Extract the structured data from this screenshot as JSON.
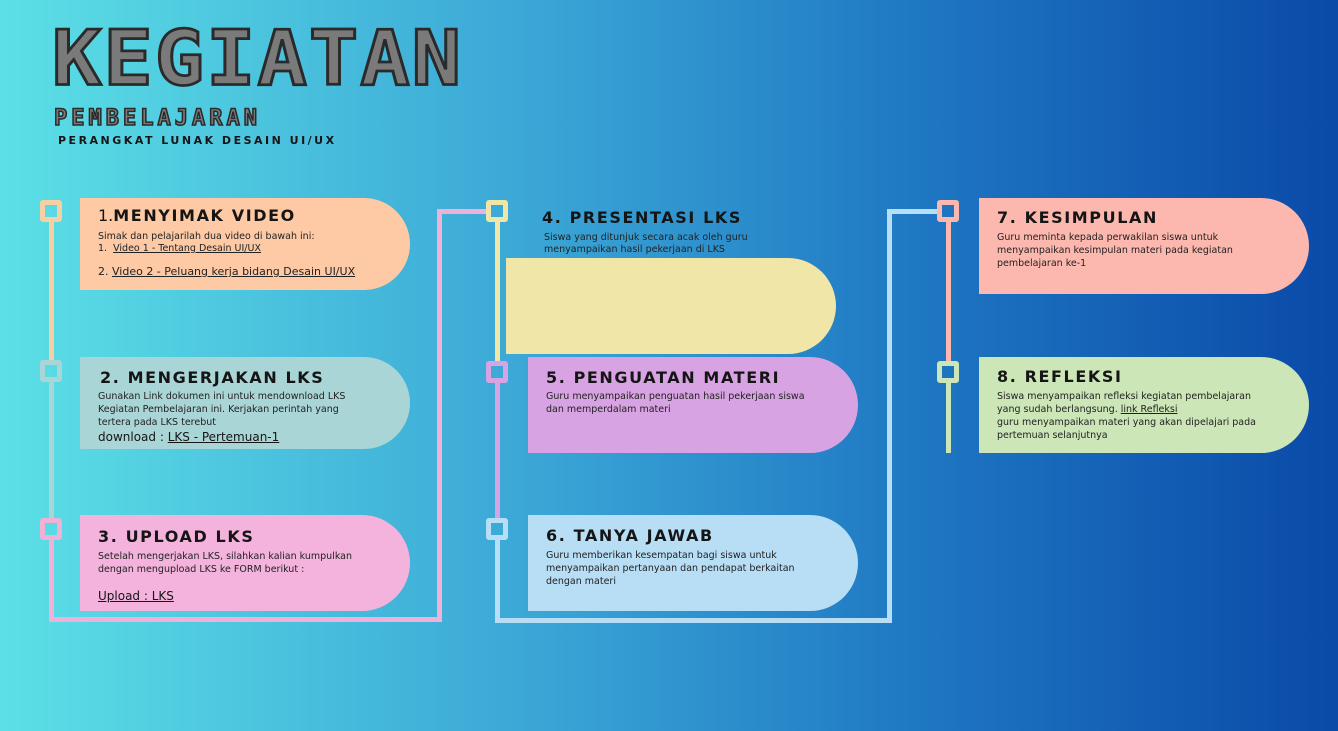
{
  "header": {
    "title": "KEGIATAN",
    "subtitle": "PEMBELAJARAN",
    "course": "PERANGKAT LUNAK DESAIN UI/UX"
  },
  "steps": [
    {
      "title": "MENYIMAK VIDEO",
      "number": "1.",
      "intro": "Simak dan pelajarilah dua video di bawah ini:",
      "item1_num": "1.",
      "item1": "Video 1 - Tentang Desain UI/UX",
      "item2_num": "2.",
      "item2": "Video 2 - Peluang kerja bidang Desain UI/UX"
    },
    {
      "title": "2. MENGERJAKAN LKS",
      "line1": "Gunakan Link dokumen ini untuk mendownload LKS",
      "line2": "Kegiatan Pembelajaran ini. Kerjakan perintah yang",
      "line3": "tertera pada LKS terebut",
      "download_label": "download : ",
      "download_link": "LKS - Pertemuan-1"
    },
    {
      "title": "3. UPLOAD LKS",
      "line1": "Setelah mengerjakan LKS, silahkan kalian kumpulkan",
      "line2": "dengan mengupload LKS ke FORM berikut :",
      "upload_link": "Upload : LKS "
    },
    {
      "title": "4. PRESENTASI LKS",
      "line1": "Siswa yang ditunjuk secara acak oleh guru",
      "line2": "menyampaikan hasil pekerjaan di LKS"
    },
    {
      "title": "5. PENGUATAN MATERI",
      "line1": "Guru menyampaikan penguatan hasil pekerjaan siswa",
      "line2": "dan memperdalam materi"
    },
    {
      "title": "6. TANYA JAWAB",
      "line1": "Guru memberikan kesempatan bagi siswa untuk",
      "line2": "menyampaikan pertanyaan dan pendapat berkaitan",
      "line3": "dengan materi"
    },
    {
      "title": "7. KESIMPULAN",
      "line1": "Guru meminta kepada perwakilan siswa untuk",
      "line2": "menyampaikan kesimpulan materi pada kegiatan",
      "line3": "pembelajaran ke-1"
    },
    {
      "title": "8. REFLEKSI",
      "line1": "Siswa menyampaikan refleksi kegiatan pembelajaran",
      "line2a": "yang sudah berlangsung. ",
      "line2_link": "link Refleksi",
      "line3": "guru menyampaikan materi yang akan dipelajari pada",
      "line4": "pertemuan selanjutnya"
    }
  ],
  "colors": {
    "card1": "#fdcaa5",
    "card2": "#a9d5d6",
    "card3": "#f3b3dc",
    "card4": "#efe6a8",
    "card5": "#d8a3e2",
    "card6": "#b7def5",
    "card7": "#fcb8ae",
    "card8": "#cde6b8"
  }
}
